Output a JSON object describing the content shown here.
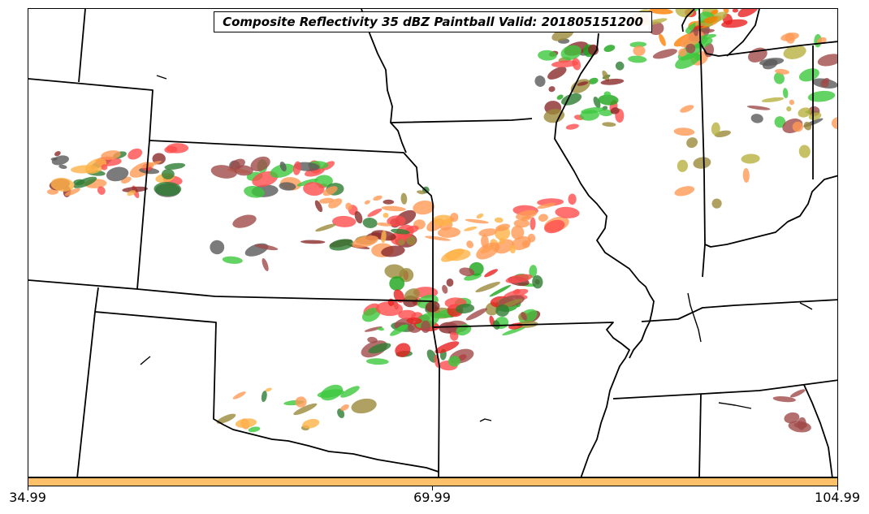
{
  "title": "Composite Reflectivity 35 dBZ Paintball Valid: 201805151200",
  "colorbar": {
    "color": "#ffc06a",
    "ticks": [
      "34.99",
      "69.99",
      "104.99"
    ]
  },
  "map": {
    "boundary_color": "#000000",
    "paintball_colors": [
      "#ff4d4d",
      "#e8201f",
      "#8b2a2a",
      "#a04a4a",
      "#5a5a5a",
      "#2e7d32",
      "#3cc83c",
      "#1aa51a",
      "#9a8a3a",
      "#b8b040",
      "#ff9a55",
      "#ffb347",
      "#ff7f00",
      "#6e8c3a"
    ]
  }
}
